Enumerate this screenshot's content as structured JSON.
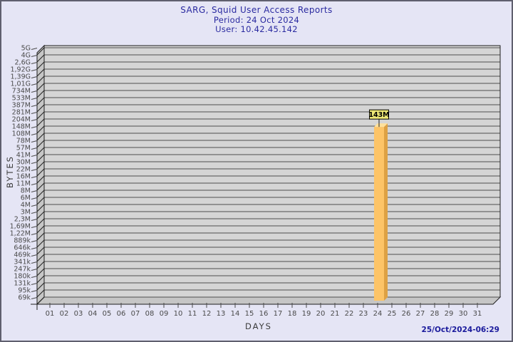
{
  "chart_data": {
    "type": "bar",
    "title": "SARG, Squid User Access Reports",
    "period": "Period: 24 Oct 2024",
    "user": "User: 10.42.45.142",
    "xlabel": "DAYS",
    "ylabel": "BYTES",
    "y_scale": "logarithmic",
    "grid": true,
    "y_range_bytes": [
      69000,
      5000000000
    ],
    "y_tick_labels": [
      "5G",
      "4G",
      "2,6G",
      "1,92G",
      "1,39G",
      "1,01G",
      "734M",
      "533M",
      "387M",
      "281M",
      "204M",
      "148M",
      "108M",
      "78M",
      "57M",
      "41M",
      "30M",
      "22M",
      "16M",
      "11M",
      "8M",
      "6M",
      "4M",
      "3M",
      "2,3M",
      "1,69M",
      "1,22M",
      "889k",
      "646k",
      "469k",
      "341k",
      "247k",
      "180k",
      "131k",
      "95k",
      "69k"
    ],
    "x_tick_labels": [
      "01",
      "02",
      "03",
      "04",
      "05",
      "06",
      "07",
      "08",
      "09",
      "10",
      "11",
      "12",
      "13",
      "14",
      "15",
      "16",
      "17",
      "18",
      "19",
      "20",
      "21",
      "22",
      "23",
      "24",
      "25",
      "26",
      "27",
      "28",
      "29",
      "30",
      "31"
    ],
    "bars": [
      {
        "day": "24",
        "label": "143M",
        "value_bytes": 143000000
      }
    ],
    "generated": "25/Oct/2024-06:29",
    "colors": {
      "background": "#e5e5f5",
      "frame_border": "#5f5f6e",
      "title_text": "#2a2aa0",
      "panel": "#d5d5d5",
      "wall": "#c6c6c6",
      "grid_line": "#4f4f4f",
      "edge_line": "#1f1f1f",
      "tick_text": "#4a4a4a",
      "axis_title_text": "#3a3a3a",
      "bar_front": "#fdc467",
      "bar_side": "#dda144",
      "bar_top": "#ffe09b",
      "value_box_bg": "#ede876",
      "value_box_border": "#000000",
      "timestamp_text": "#1a1a9c"
    }
  }
}
